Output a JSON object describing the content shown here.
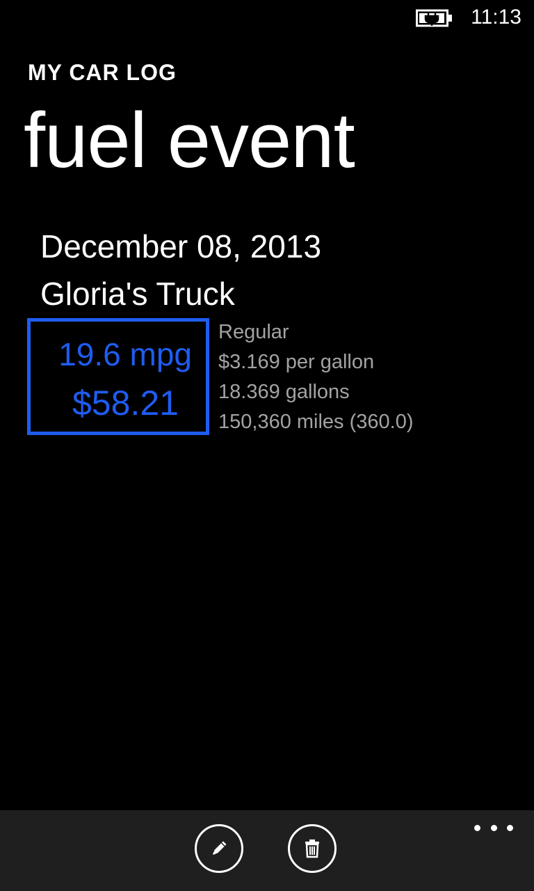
{
  "status_bar": {
    "battery_icon": "battery-charging-icon",
    "time": "11:13"
  },
  "header": {
    "app_title": "MY CAR LOG",
    "page_title": "fuel event"
  },
  "event": {
    "date": "December 08, 2013",
    "vehicle": "Gloria's Truck",
    "summary": {
      "mpg": "19.6 mpg",
      "cost": "$58.21"
    },
    "details": {
      "fuel_type": "Regular",
      "price": "$3.169 per gallon",
      "gallons": "18.369 gallons",
      "odometer": "150,360 miles  (360.0)"
    }
  },
  "app_bar": {
    "buttons": [
      {
        "icon": "pencil-icon",
        "action": "edit"
      },
      {
        "icon": "trash-icon",
        "action": "delete"
      }
    ],
    "more_icon": "ellipsis-icon"
  },
  "colors": {
    "accent": "#1f5cf0",
    "background": "#000000",
    "secondary_text": "#a3a3a3",
    "app_bar": "#1f1f1f"
  }
}
